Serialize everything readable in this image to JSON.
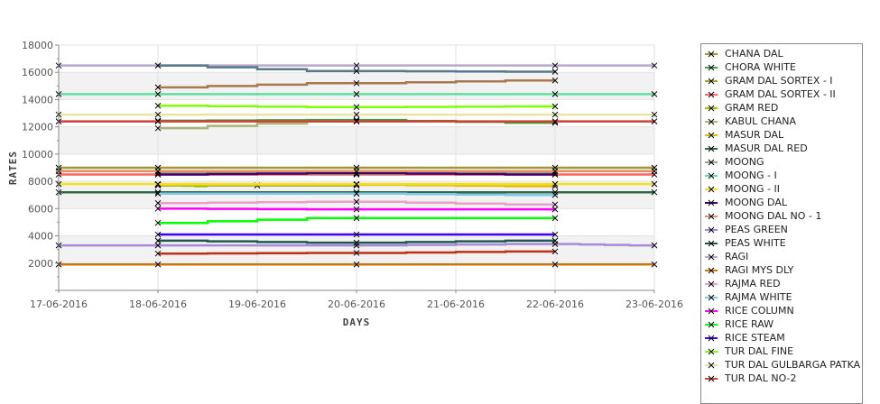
{
  "chart_data": {
    "type": "line",
    "title": "",
    "xlabel": "DAYS",
    "ylabel": "RATES",
    "x_categories": [
      "17-06-2016",
      "18-06-2016",
      "19-06-2016",
      "20-06-2016",
      "21-06-2016",
      "22-06-2016",
      "23-06-2016"
    ],
    "ylim": [
      0,
      18000
    ],
    "yticks": [
      2000,
      4000,
      6000,
      8000,
      10000,
      12000,
      14000,
      16000,
      18000
    ],
    "grid": true,
    "legend_position": "right",
    "series": [
      {
        "name": "CHANA DAL",
        "color": "#a09838",
        "points": [
          [
            0,
            9000
          ],
          [
            1,
            9000
          ],
          [
            3,
            9000
          ],
          [
            5,
            9000
          ],
          [
            6,
            9000
          ]
        ]
      },
      {
        "name": "CHORA WHITE",
        "color": "#40a040",
        "points": [
          [
            1,
            12450
          ],
          [
            3,
            12500
          ],
          [
            5,
            12300
          ]
        ]
      },
      {
        "name": "GRAM DAL SORTEX  - I",
        "color": "#a0a030",
        "points": [
          [
            1,
            7700
          ],
          [
            2,
            7700
          ],
          [
            3,
            7700
          ]
        ]
      },
      {
        "name": "GRAM DAL SORTEX - II",
        "color": "#ff6060",
        "points": [
          [
            0,
            8500
          ],
          [
            1,
            8500
          ],
          [
            3,
            8500
          ],
          [
            5,
            8500
          ],
          [
            6,
            8500
          ]
        ]
      },
      {
        "name": "GRAM RED",
        "color": "#90c000",
        "points": [
          [
            1,
            7750
          ],
          [
            1.5,
            7650
          ]
        ]
      },
      {
        "name": "KABUL CHANA",
        "color": "#a8b878",
        "points": [
          [
            1,
            11900
          ],
          [
            3,
            12400
          ]
        ]
      },
      {
        "name": "MASUR DAL",
        "color": "#e8b800",
        "points": [
          [
            1,
            7750
          ],
          [
            3,
            7750
          ],
          [
            5,
            7650
          ]
        ]
      },
      {
        "name": "MASUR DAL RED",
        "color": "#306848",
        "points": [
          [
            0,
            7200
          ],
          [
            1,
            7200
          ],
          [
            3,
            7200
          ],
          [
            5,
            7200
          ],
          [
            6,
            7200
          ]
        ]
      },
      {
        "name": "MOONG",
        "color": "#a0a080",
        "points": [
          [
            1,
            8600
          ],
          [
            3,
            8550
          ],
          [
            5,
            8600
          ]
        ]
      },
      {
        "name": "MOONG - I",
        "color": "#5de0a0",
        "points": [
          [
            0,
            14400
          ],
          [
            1,
            14400
          ],
          [
            3,
            14400
          ],
          [
            5,
            14400
          ],
          [
            6,
            14400
          ]
        ]
      },
      {
        "name": "MOONG - II",
        "color": "#f0e020",
        "points": [
          [
            0,
            7800
          ],
          [
            1,
            7800
          ],
          [
            3,
            7800
          ],
          [
            5,
            7800
          ],
          [
            6,
            7800
          ]
        ]
      },
      {
        "name": "MOONG DAL",
        "color": "#400070",
        "points": [
          [
            1,
            8500
          ],
          [
            3,
            8600
          ],
          [
            5,
            8500
          ]
        ]
      },
      {
        "name": "MOONG DAL NO - 1",
        "color": "#e09060",
        "points": [
          [
            0,
            8750
          ],
          [
            1,
            8750
          ],
          [
            3,
            8750
          ],
          [
            5,
            8750
          ],
          [
            6,
            8750
          ]
        ]
      },
      {
        "name": "PEAS GREEN",
        "color": "#a88ad8",
        "points": [
          [
            0,
            3300
          ],
          [
            1,
            3300
          ],
          [
            3,
            3300
          ],
          [
            5,
            3400
          ],
          [
            6,
            3300
          ]
        ]
      },
      {
        "name": "PEAS WHITE",
        "color": "#205850",
        "points": [
          [
            1,
            3650
          ],
          [
            3,
            3500
          ],
          [
            5,
            3650
          ]
        ]
      },
      {
        "name": "RAGI",
        "color": "#b8a8cc",
        "points": [
          [
            0,
            16500
          ],
          [
            1,
            16500
          ],
          [
            3,
            16500
          ],
          [
            5,
            16500
          ],
          [
            6,
            16500
          ]
        ]
      },
      {
        "name": "RAGI MYS DLY",
        "color": "#c87810",
        "points": [
          [
            0,
            1900
          ],
          [
            1,
            1900
          ],
          [
            3,
            1900
          ],
          [
            5,
            1900
          ],
          [
            6,
            1900
          ]
        ]
      },
      {
        "name": "RAJMA RED",
        "color": "#e8a0c8",
        "points": [
          [
            1,
            6400
          ],
          [
            3,
            6500
          ],
          [
            5,
            6300
          ]
        ]
      },
      {
        "name": "RAJMA WHITE",
        "color": "#80c8e8",
        "points": [
          [
            1,
            7100
          ],
          [
            3,
            7100
          ],
          [
            5,
            7000
          ]
        ]
      },
      {
        "name": "RICE COLUMN",
        "color": "#ff00ff",
        "points": [
          [
            1,
            6000
          ],
          [
            3,
            5950
          ],
          [
            5,
            5950
          ]
        ]
      },
      {
        "name": "RICE RAW",
        "color": "#00ff00",
        "points": [
          [
            1,
            4950
          ],
          [
            3,
            5300
          ],
          [
            5,
            5300
          ]
        ]
      },
      {
        "name": "RICE STEAM",
        "color": "#4000ff",
        "points": [
          [
            1,
            4100
          ],
          [
            3,
            4100
          ],
          [
            5,
            4100
          ]
        ]
      },
      {
        "name": "TUR DAL FINE",
        "color": "#80ff00",
        "points": [
          [
            1,
            13550
          ],
          [
            3,
            13450
          ],
          [
            5,
            13500
          ]
        ]
      },
      {
        "name": "TUR DAL GULBARGA PATKA",
        "color": "#e8e4a8",
        "points": [
          [
            0,
            12900
          ],
          [
            1,
            12900
          ],
          [
            3,
            12900
          ],
          [
            5,
            12900
          ],
          [
            6,
            12900
          ]
        ]
      },
      {
        "name": "TUR DAL NO-2",
        "color": "#d04030",
        "points": [
          [
            0,
            12400
          ],
          [
            1,
            12400
          ],
          [
            3,
            12400
          ],
          [
            5,
            12400
          ],
          [
            6,
            12400
          ]
        ]
      },
      {
        "name": "",
        "color": "#557a8c",
        "points": [
          [
            1,
            16500
          ],
          [
            3,
            16100
          ],
          [
            5,
            16050
          ]
        ]
      },
      {
        "name": "",
        "color": "#a87850",
        "points": [
          [
            1,
            14900
          ],
          [
            3,
            15200
          ],
          [
            5,
            15400
          ]
        ]
      },
      {
        "name": "",
        "color": "#c03010",
        "points": [
          [
            1,
            2700
          ],
          [
            3,
            2750
          ],
          [
            5,
            2850
          ]
        ]
      }
    ]
  }
}
